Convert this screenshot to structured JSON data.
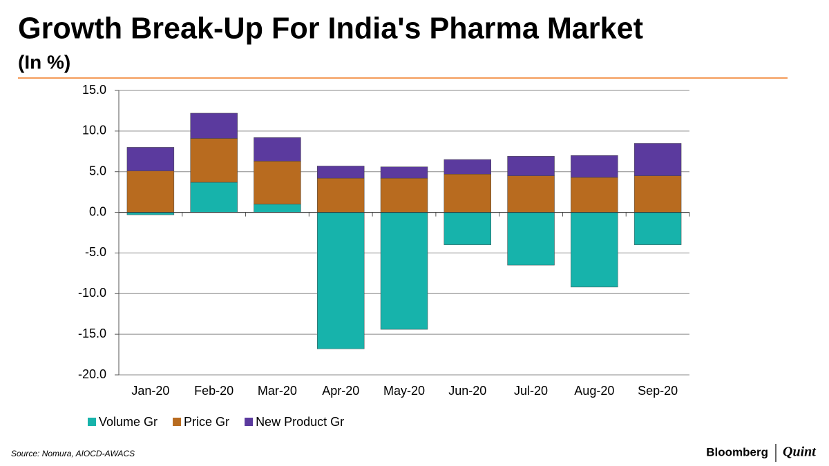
{
  "chart_data": {
    "type": "stacked_bar",
    "title": "Growth Break-Up For India's Pharma Market",
    "subtitle": "(In %)",
    "categories": [
      "Jan-20",
      "Feb-20",
      "Mar-20",
      "Apr-20",
      "May-20",
      "Jun-20",
      "Jul-20",
      "Aug-20",
      "Sep-20"
    ],
    "series": [
      {
        "name": "Volume Gr",
        "color": "#17b3ab",
        "values": [
          -0.3,
          3.7,
          1.0,
          -16.8,
          -14.4,
          -4.0,
          -6.5,
          -9.2,
          -4.0
        ]
      },
      {
        "name": "Price Gr",
        "color": "#b86b1f",
        "values": [
          5.1,
          5.4,
          5.3,
          4.2,
          4.2,
          4.7,
          4.5,
          4.3,
          4.5
        ]
      },
      {
        "name": "New Product Gr",
        "color": "#5b3a9e",
        "values": [
          2.9,
          3.1,
          2.9,
          1.5,
          1.4,
          1.8,
          2.4,
          2.7,
          4.0
        ]
      }
    ],
    "ylim": [
      -20,
      15
    ],
    "yticks": [
      {
        "value": -20,
        "label": "-20.0"
      },
      {
        "value": -15,
        "label": "-15.0"
      },
      {
        "value": -10,
        "label": "-10.0"
      },
      {
        "value": -5,
        "label": "-5.0"
      },
      {
        "value": 0,
        "label": "0.0"
      },
      {
        "value": 5,
        "label": "5.0"
      },
      {
        "value": 10,
        "label": "10.0"
      },
      {
        "value": 15,
        "label": "15.0"
      }
    ],
    "grid": true,
    "legend": "bottom"
  },
  "footer": {
    "source": "Source: Nomura, AIOCD-AWACS",
    "brand": "Bloomberg",
    "brand2": "Quint"
  }
}
